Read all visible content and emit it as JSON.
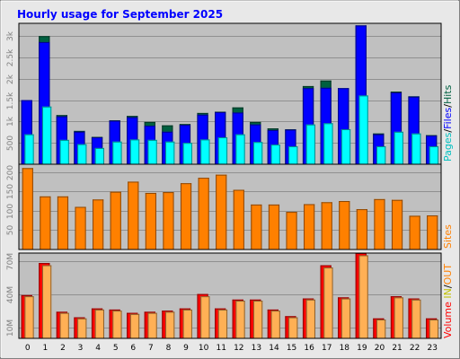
{
  "chart_data": {
    "type": "bar",
    "title": "Hourly usage for September 2025",
    "categories": [
      "0",
      "1",
      "2",
      "3",
      "4",
      "5",
      "6",
      "7",
      "8",
      "9",
      "10",
      "11",
      "12",
      "13",
      "14",
      "15",
      "16",
      "17",
      "18",
      "19",
      "20",
      "21",
      "22",
      "23"
    ],
    "panels": [
      {
        "id": "hits",
        "ylim": [
          0,
          3300
        ],
        "yticks": [
          500,
          1000,
          1500,
          2000,
          2500,
          3000
        ],
        "ytick_labels": [
          "500",
          "1k",
          "1.5k",
          "2k",
          "2.5k",
          "3k"
        ],
        "legend": [
          "Pages",
          "/",
          "Files",
          "/",
          "Hits"
        ],
        "series": [
          {
            "name": "Hits",
            "color": "#006040",
            "values": [
              1500,
              3000,
              1150,
              780,
              640,
              1030,
              1130,
              990,
              910,
              940,
              1200,
              1230,
              1330,
              990,
              840,
              820,
              1830,
              1960,
              1780,
              3250,
              720,
              1700,
              1590,
              680
            ]
          },
          {
            "name": "Files",
            "color": "#0000ff",
            "values": [
              1500,
              2860,
              1120,
              760,
              630,
              1020,
              1100,
              900,
              760,
              920,
              1160,
              1220,
              1210,
              930,
              800,
              810,
              1780,
              1790,
              1780,
              3250,
              700,
              1680,
              1580,
              670
            ]
          },
          {
            "name": "Pages",
            "color": "#00ffff",
            "values": [
              700,
              1350,
              570,
              470,
              380,
              530,
              580,
              570,
              530,
              500,
              580,
              630,
              700,
              520,
              460,
              420,
              930,
              960,
              820,
              1610,
              420,
              760,
              720,
              420
            ]
          }
        ]
      },
      {
        "id": "sites",
        "ylim": [
          0,
          220
        ],
        "yticks": [
          50,
          100,
          150,
          200
        ],
        "ytick_labels": [
          "50",
          "100",
          "150",
          "200"
        ],
        "legend": [
          "Sites"
        ],
        "series": [
          {
            "name": "Sites",
            "color": "#ff8000",
            "values": [
              210,
              137,
              137,
              110,
              129,
              149,
              175,
              146,
              148,
              171,
              185,
              193,
              154,
              116,
              116,
              97,
              117,
              122,
              125,
              104,
              130,
              128,
              87,
              88
            ]
          }
        ]
      },
      {
        "id": "volume",
        "ylim": [
          0,
          77
        ],
        "yticks": [
          10,
          40,
          70
        ],
        "ytick_labels": [
          "10M",
          "40M",
          "70M"
        ],
        "legend": [
          "Volume",
          "IN",
          "/",
          "OUT"
        ],
        "series": [
          {
            "name": "Volume",
            "color": "#ff0000",
            "values": [
              39,
              68,
              24,
              19,
              27,
              26,
              23,
              24,
              25,
              27,
              40,
              27,
              35,
              35,
              26,
              20,
              36,
              66,
              37,
              77,
              18,
              38,
              36,
              18
            ]
          },
          {
            "name": "OUT",
            "color": "#ffb055",
            "values": [
              38,
              66,
              23,
              18,
              26,
              25,
              22,
              23,
              24,
              26,
              38,
              26,
              34,
              34,
              25,
              19,
              35,
              64,
              36,
              75,
              17,
              37,
              35,
              17
            ]
          }
        ]
      }
    ],
    "legend_colors": {
      "Pages": "#00c0c0",
      "Files": "#0000ff",
      "Hits": "#006040",
      "Sites": "#ff8000",
      "Volume": "#ff0000",
      "IN": "#c0c000",
      "OUT": "#ff8000",
      "separator": "#000000"
    },
    "colors": {
      "title": "#0000ff",
      "frame_bg": "#e8e8e8",
      "panel_bg": "#c0c0c0"
    }
  }
}
